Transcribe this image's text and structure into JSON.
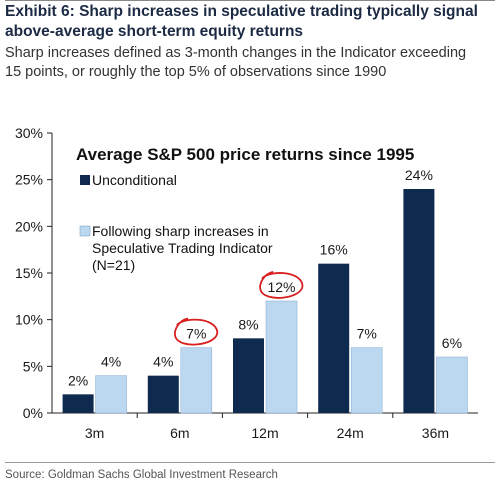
{
  "header": {
    "title_line1": "Exhibit 6: Sharp increases in speculative trading typically signal",
    "title_line2": "above-average short-term equity returns",
    "subtitle_line1": "Sharp increases defined as 3-month changes in the Indicator exceeding",
    "subtitle_line2": "15 points, or roughly the top 5% of observations since 1990"
  },
  "source": "Source: Goldman Sachs Global Investment Research",
  "colors": {
    "unconditional": "#0f2a4f",
    "sharp_increase": "#bcd7f0",
    "annotation": "#d81e1e"
  },
  "chart_data": {
    "type": "bar",
    "title": "Average S&P 500 price returns since 1995",
    "categories": [
      "3m",
      "6m",
      "12m",
      "24m",
      "36m"
    ],
    "series": [
      {
        "name": "Unconditional",
        "values": [
          2,
          4,
          8,
          16,
          24
        ],
        "labels": [
          "2%",
          "4%",
          "8%",
          "16%",
          "24%"
        ]
      },
      {
        "name": "Following sharp increases in Speculative Trading Indicator (N=21)",
        "legend_lines": [
          "Following sharp increases in",
          "Speculative Trading Indicator",
          "(N=21)"
        ],
        "values": [
          4,
          7,
          12,
          7,
          6
        ],
        "labels": [
          "4%",
          "7%",
          "12%",
          "7%",
          "6%"
        ]
      }
    ],
    "ylim": [
      0,
      30
    ],
    "yticks": [
      0,
      5,
      10,
      15,
      20,
      25,
      30
    ],
    "ytick_labels": [
      "0%",
      "5%",
      "10%",
      "15%",
      "20%",
      "25%",
      "30%"
    ],
    "legend_position": "top-left",
    "circled_labels": [
      {
        "series": 1,
        "category": 1
      },
      {
        "series": 1,
        "category": 2
      }
    ],
    "grid": false
  }
}
